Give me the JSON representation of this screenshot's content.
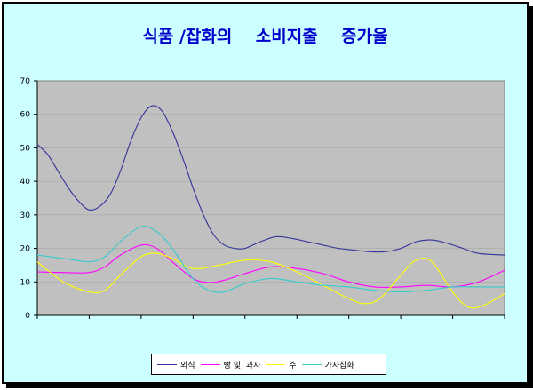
{
  "chart_data": {
    "type": "line",
    "title": "식품 /잡화의    소비지출    증가율",
    "xlabel": "",
    "ylabel": "",
    "ylim": [
      0,
      70
    ],
    "yticks": [
      0,
      10,
      20,
      30,
      40,
      50,
      60,
      70
    ],
    "x_categories": 9,
    "grid": "y",
    "plot_background": "#c0c0c0",
    "legend_position": "bottom",
    "series": [
      {
        "name": "외식",
        "color": "#333399",
        "x": [
          0,
          0.2,
          0.4,
          0.6,
          0.8,
          1.0,
          1.2,
          1.4,
          1.6,
          1.8,
          2.0,
          2.2,
          2.4,
          2.6,
          2.8,
          3.0,
          3.2,
          3.4,
          3.6,
          3.8,
          4.0,
          4.3,
          4.6,
          4.9,
          5.2,
          5.5,
          5.8,
          6.1,
          6.4,
          6.7,
          7.0,
          7.3,
          7.6,
          7.9,
          8.2,
          8.5,
          9.0
        ],
        "y": [
          51,
          48,
          43,
          38,
          34,
          31.5,
          32.5,
          36,
          43,
          52,
          59,
          62.5,
          61,
          55,
          47,
          38,
          30,
          24,
          21,
          20,
          20,
          22,
          23.5,
          23,
          22,
          21,
          20,
          19.5,
          19,
          19,
          20,
          22,
          22.5,
          21.5,
          20,
          18.5,
          18
        ]
      },
      {
        "name": "빵 및  과자",
        "color": "#ff00ff",
        "x": [
          0,
          0.5,
          1.0,
          1.3,
          1.6,
          2.0,
          2.3,
          2.6,
          3.0,
          3.3,
          3.6,
          4.0,
          4.5,
          5.0,
          5.5,
          6.0,
          6.5,
          7.0,
          7.5,
          8.0,
          8.5,
          9.0
        ],
        "y": [
          13,
          12.8,
          12.8,
          14.5,
          18,
          21,
          20,
          16,
          11,
          9.8,
          10.5,
          12.5,
          14.5,
          14,
          12.5,
          10,
          8.5,
          8.5,
          9,
          8.5,
          10,
          13.5
        ]
      },
      {
        "name": "주",
        "color": "#ffff00",
        "x": [
          0,
          0.5,
          1.0,
          1.3,
          1.6,
          2.0,
          2.3,
          2.6,
          3.0,
          3.5,
          4.0,
          4.5,
          5.0,
          5.5,
          6.0,
          6.3,
          6.6,
          7.0,
          7.3,
          7.6,
          8.0,
          8.3,
          8.6,
          9.0
        ],
        "y": [
          16,
          10,
          7,
          7.5,
          12,
          17.5,
          18.5,
          17,
          14,
          15,
          16.5,
          16,
          13,
          9,
          5,
          3.5,
          5,
          12,
          16.5,
          16,
          7,
          2.5,
          3,
          6.5
        ]
      },
      {
        "name": "가사잡화",
        "color": "#33cccc",
        "x": [
          0,
          0.5,
          1.0,
          1.3,
          1.6,
          2.0,
          2.3,
          2.6,
          3.0,
          3.3,
          3.6,
          4.0,
          4.5,
          5.0,
          5.5,
          6.0,
          6.5,
          7.0,
          7.5,
          8.0,
          8.5,
          9.0
        ],
        "y": [
          18,
          17,
          16,
          17.5,
          22,
          26.5,
          25,
          20,
          11,
          7.5,
          7,
          9.5,
          11,
          10,
          9,
          8.5,
          7.5,
          7,
          7.5,
          8.5,
          8.5,
          8.5
        ]
      }
    ]
  }
}
